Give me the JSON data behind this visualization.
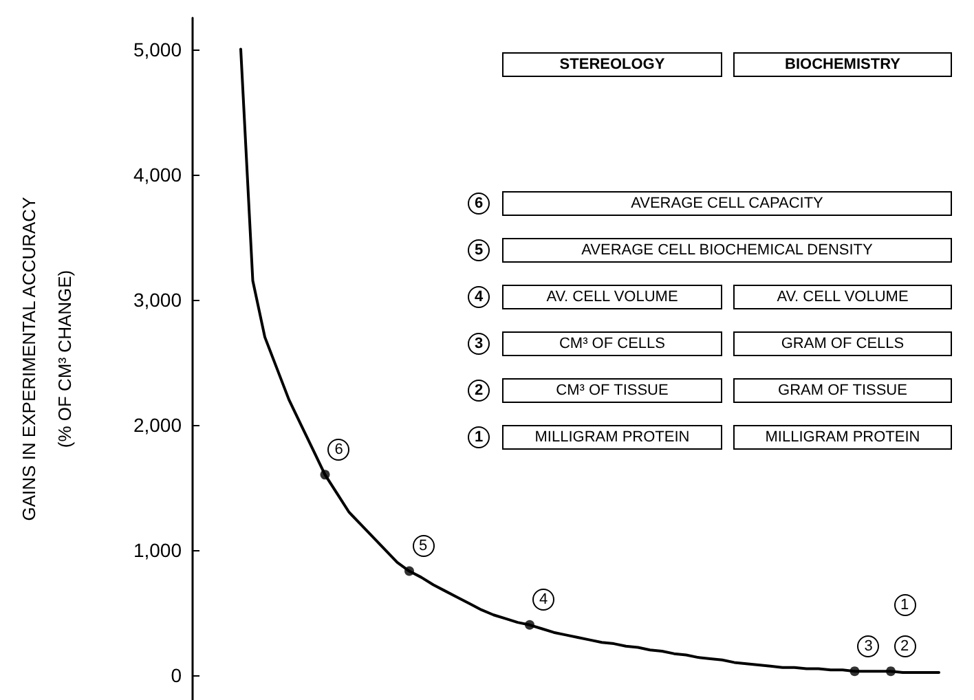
{
  "chart_data": {
    "type": "line",
    "ylabel": "GAINS IN EXPERIMENTAL ACCURACY\n(% OF CM³ CHANGE)",
    "categories": [
      null,
      null,
      null,
      null,
      null,
      null,
      null,
      null,
      null,
      null,
      null,
      null,
      null,
      null,
      null,
      null,
      null,
      null,
      null,
      null,
      null,
      null,
      null,
      null,
      null,
      null,
      null,
      null,
      null,
      null,
      null,
      null,
      null,
      null,
      null,
      null,
      null,
      null,
      null,
      null,
      null,
      null,
      null,
      null,
      null,
      null,
      null,
      null,
      null,
      null,
      null,
      null,
      null,
      null,
      null,
      null,
      null,
      null,
      null,
      null,
      null,
      null,
      null,
      null,
      null
    ],
    "series": [
      {
        "color": "#000000",
        "marker": "none",
        "values": [
          null,
          null,
          null,
          null,
          5000,
          3150,
          2700,
          2450,
          2200,
          2000,
          1800,
          1600,
          1450,
          1300,
          1200,
          1100,
          1000,
          900,
          830,
          780,
          720,
          670,
          620,
          570,
          520,
          480,
          450,
          420,
          400,
          370,
          340,
          320,
          300,
          280,
          260,
          250,
          230,
          220,
          200,
          190,
          170,
          160,
          140,
          130,
          120,
          100,
          90,
          80,
          70,
          60,
          60,
          50,
          50,
          40,
          40,
          30,
          30,
          30,
          30,
          20,
          20,
          20,
          20,
          null,
          null
        ]
      },
      {
        "type": "scatter",
        "color": "#000000",
        "marker": "circle",
        "values": [
          null,
          null,
          null,
          null,
          null,
          null,
          null,
          null,
          null,
          null,
          null,
          1600,
          null,
          null,
          null,
          null,
          null,
          null,
          830,
          null,
          null,
          null,
          null,
          null,
          null,
          null,
          null,
          null,
          400,
          null,
          null,
          null,
          null,
          null,
          null,
          null,
          null,
          null,
          null,
          null,
          null,
          null,
          null,
          null,
          null,
          null,
          null,
          null,
          null,
          null,
          null,
          null,
          null,
          null,
          null,
          30,
          null,
          null,
          30,
          null,
          null,
          null,
          null,
          null,
          null
        ]
      }
    ],
    "ylim": [
      -200,
      5250
    ],
    "yticks": [
      {
        "value": 0,
        "label": "0"
      },
      {
        "value": 1000,
        "label": "1,000"
      },
      {
        "value": 2000,
        "label": "2,000"
      },
      {
        "value": 3000,
        "label": "3,000"
      },
      {
        "value": 4000,
        "label": "4,000"
      },
      {
        "value": 5000,
        "label": "5,000"
      }
    ],
    "tick_labels": "y",
    "annotations": [
      "STEREOLOGY",
      "BIOCHEMISTRY",
      "6",
      "AVERAGE CELL CAPACITY",
      "5",
      "AVERAGE CELL BIOCHEMICAL DENSITY",
      "4",
      "AV. CELL VOLUME",
      "AV. CELL VOLUME",
      "3",
      "CM³ OF CELLS",
      "GRAM OF CELLS",
      "2",
      "CM³ OF TISSUE",
      "GRAM OF TISSUE",
      "1",
      "MILLIGRAM PROTEIN",
      "MILLIGRAM PROTEIN",
      "6",
      "5",
      "4",
      "3",
      "2",
      "1"
    ]
  }
}
